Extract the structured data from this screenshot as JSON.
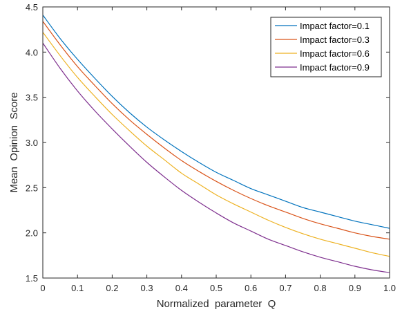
{
  "chart_data": {
    "type": "line",
    "title": "",
    "xlabel": "Normalized  parameter  Q",
    "ylabel": "Mean  Opinion  Score",
    "xlim": [
      0,
      1
    ],
    "ylim": [
      1.5,
      4.5
    ],
    "xticks": [
      0,
      0.1,
      0.2,
      0.3,
      0.4,
      0.5,
      0.6,
      0.7,
      0.8,
      0.9,
      1.0
    ],
    "xtick_labels": [
      "0",
      "0.1",
      "0.2",
      "0.3",
      "0.4",
      "0.5",
      "0.6",
      "0.7",
      "0.8",
      "0.9",
      "1.0"
    ],
    "yticks": [
      1.5,
      2.0,
      2.5,
      3.0,
      3.5,
      4.0,
      4.5
    ],
    "ytick_labels": [
      "1.5",
      "2.0",
      "2.5",
      "3.0",
      "3.5",
      "4.0",
      "4.5"
    ],
    "grid": false,
    "legend_position": "top-right",
    "x": [
      0,
      0.05,
      0.1,
      0.15,
      0.2,
      0.25,
      0.3,
      0.35,
      0.4,
      0.45,
      0.5,
      0.55,
      0.6,
      0.65,
      0.7,
      0.75,
      0.8,
      0.85,
      0.9,
      0.95,
      1.0
    ],
    "series": [
      {
        "name": "Impact factor=0.1",
        "color": "#0072BD",
        "values": [
          4.41,
          4.15,
          3.92,
          3.71,
          3.51,
          3.33,
          3.17,
          3.03,
          2.9,
          2.78,
          2.67,
          2.58,
          2.49,
          2.42,
          2.35,
          2.28,
          2.23,
          2.18,
          2.13,
          2.09,
          2.05
        ]
      },
      {
        "name": "Impact factor=0.3",
        "color": "#D95319",
        "values": [
          4.34,
          4.08,
          3.84,
          3.63,
          3.43,
          3.25,
          3.09,
          2.94,
          2.8,
          2.68,
          2.57,
          2.47,
          2.38,
          2.3,
          2.23,
          2.16,
          2.1,
          2.05,
          2.0,
          1.96,
          1.93
        ]
      },
      {
        "name": "Impact factor=0.6",
        "color": "#EDB120",
        "values": [
          4.22,
          3.96,
          3.72,
          3.51,
          3.31,
          3.13,
          2.96,
          2.81,
          2.66,
          2.54,
          2.42,
          2.32,
          2.23,
          2.14,
          2.06,
          1.99,
          1.93,
          1.88,
          1.83,
          1.78,
          1.74
        ]
      },
      {
        "name": "Impact factor=0.9",
        "color": "#7E2F8E",
        "values": [
          4.1,
          3.82,
          3.57,
          3.35,
          3.15,
          2.96,
          2.78,
          2.62,
          2.47,
          2.34,
          2.22,
          2.11,
          2.02,
          1.93,
          1.86,
          1.79,
          1.73,
          1.68,
          1.63,
          1.59,
          1.56
        ]
      }
    ]
  }
}
